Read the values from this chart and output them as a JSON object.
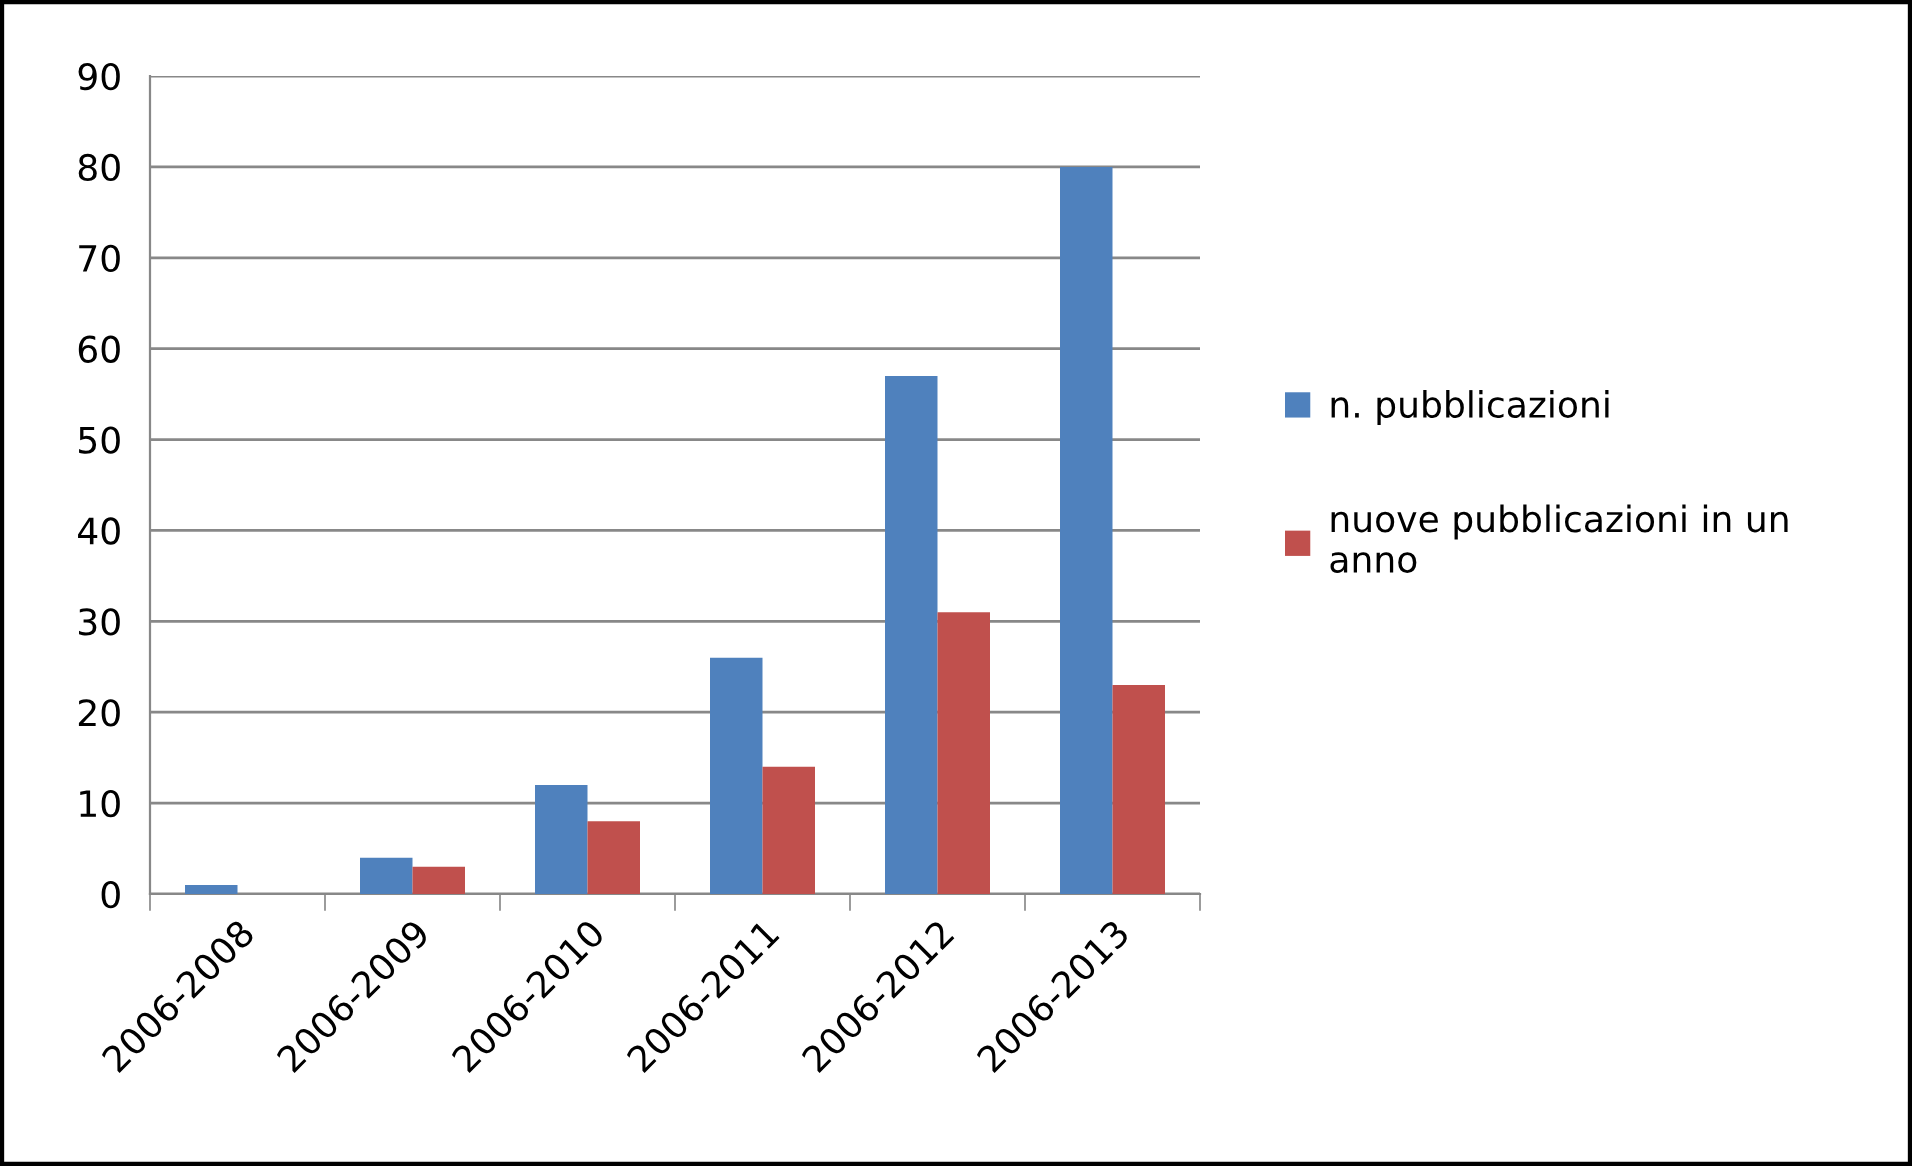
{
  "chart_data": {
    "type": "bar",
    "categories": [
      "2006-2008",
      "2006-2009",
      "2006-2010",
      "2006-2011",
      "2006-2012",
      "2006-2013"
    ],
    "series": [
      {
        "name": "n. pubblicazioni",
        "color": "#4f81bd",
        "values": [
          1,
          4,
          12,
          26,
          57,
          80
        ]
      },
      {
        "name": "nuove pubblicazioni in un anno",
        "color": "#c0504d",
        "values": [
          null,
          3,
          8,
          14,
          31,
          23
        ]
      }
    ],
    "ylim": [
      0,
      90
    ],
    "yticks": [
      0,
      10,
      20,
      30,
      40,
      50,
      60,
      70,
      80,
      90
    ],
    "grid": "y",
    "legend": "right"
  }
}
